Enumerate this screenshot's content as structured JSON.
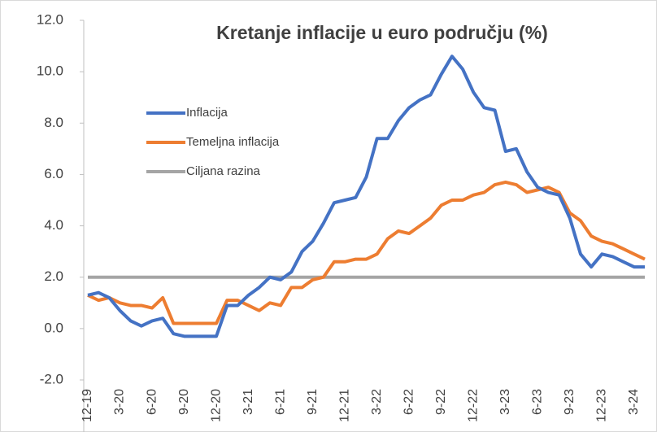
{
  "chart_data": {
    "type": "line",
    "title": "Kretanje inflacije u euro području (%)",
    "categories": [
      "12-19",
      null,
      null,
      "3-20",
      null,
      null,
      "6-20",
      null,
      null,
      "9-20",
      null,
      null,
      "12-20",
      null,
      null,
      "3-21",
      null,
      null,
      "6-21",
      null,
      null,
      "9-21",
      null,
      null,
      "12-21",
      null,
      null,
      "3-22",
      null,
      null,
      "6-22",
      null,
      null,
      "9-22",
      null,
      null,
      "12-22",
      null,
      null,
      "3-23",
      null,
      null,
      "6-23",
      null,
      null,
      "9-23",
      null,
      null,
      "12-23",
      null,
      null,
      "3-24",
      null
    ],
    "series": [
      {
        "name": "Inflacija",
        "color": "#4472c4",
        "values": [
          1.3,
          1.4,
          1.2,
          0.7,
          0.3,
          0.1,
          0.3,
          0.4,
          -0.2,
          -0.3,
          -0.3,
          -0.3,
          -0.3,
          0.9,
          0.9,
          1.3,
          1.6,
          2.0,
          1.9,
          2.2,
          3.0,
          3.4,
          4.1,
          4.9,
          5.0,
          5.1,
          5.9,
          7.4,
          7.4,
          8.1,
          8.6,
          8.9,
          9.1,
          9.9,
          10.6,
          10.1,
          9.2,
          8.6,
          8.5,
          6.9,
          7.0,
          6.1,
          5.5,
          5.3,
          5.2,
          4.3,
          2.9,
          2.4,
          2.9,
          2.8,
          2.6,
          2.4,
          2.4
        ]
      },
      {
        "name": "Temeljna inflacija",
        "color": "#ed7d31",
        "values": [
          1.3,
          1.1,
          1.2,
          1.0,
          0.9,
          0.9,
          0.8,
          1.2,
          0.2,
          0.2,
          0.2,
          0.2,
          0.2,
          1.1,
          1.1,
          0.9,
          0.7,
          1.0,
          0.9,
          1.6,
          1.6,
          1.9,
          2.0,
          2.6,
          2.6,
          2.7,
          2.7,
          2.9,
          3.5,
          3.8,
          3.7,
          4.0,
          4.3,
          4.8,
          5.0,
          5.0,
          5.2,
          5.3,
          5.6,
          5.7,
          5.6,
          5.3,
          5.4,
          5.5,
          5.3,
          4.5,
          4.2,
          3.6,
          3.4,
          3.3,
          3.1,
          2.9,
          2.7
        ]
      },
      {
        "name": "Ciljana razina",
        "color": "#a5a5a5",
        "values": [
          2,
          2,
          2,
          2,
          2,
          2,
          2,
          2,
          2,
          2,
          2,
          2,
          2,
          2,
          2,
          2,
          2,
          2,
          2,
          2,
          2,
          2,
          2,
          2,
          2,
          2,
          2,
          2,
          2,
          2,
          2,
          2,
          2,
          2,
          2,
          2,
          2,
          2,
          2,
          2,
          2,
          2,
          2,
          2,
          2,
          2,
          2,
          2,
          2,
          2,
          2,
          2,
          2
        ]
      }
    ],
    "ylim": [
      -2,
      12
    ],
    "yticks": [
      {
        "value": -2,
        "label": "-2.0"
      },
      {
        "value": 0,
        "label": "0.0"
      },
      {
        "value": 2,
        "label": "2.0"
      },
      {
        "value": 4,
        "label": "4.0"
      },
      {
        "value": 6,
        "label": "6.0"
      },
      {
        "value": 8,
        "label": "8.0"
      },
      {
        "value": 10,
        "label": "10.0"
      },
      {
        "value": 12,
        "label": "12.0"
      }
    ],
    "legend": "upper left"
  }
}
